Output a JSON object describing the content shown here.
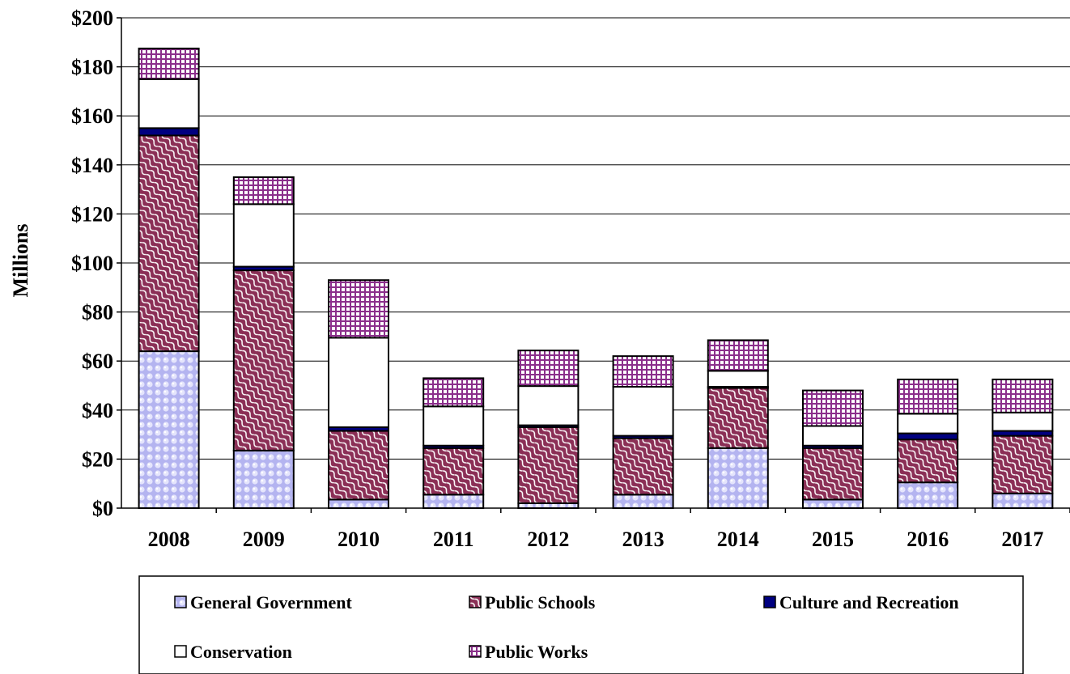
{
  "chart_data": {
    "type": "bar",
    "stacked": true,
    "ylabel": "Millions",
    "ylim": [
      0,
      200
    ],
    "y_ticks": [
      "$0",
      "$20",
      "$40",
      "$60",
      "$80",
      "$100",
      "$120",
      "$140",
      "$160",
      "$180",
      "$200"
    ],
    "y_tick_values": [
      0,
      20,
      40,
      60,
      80,
      100,
      120,
      140,
      160,
      180,
      200
    ],
    "grid": true,
    "legend_position": "bottom",
    "categories": [
      "2008",
      "2009",
      "2010",
      "2011",
      "2012",
      "2013",
      "2014",
      "2015",
      "2016",
      "2017"
    ],
    "series": [
      {
        "name": "General Government",
        "color": "#b4b4f0",
        "pattern": "dots",
        "values": [
          64,
          23.5,
          3.5,
          5.5,
          2,
          5.5,
          24.5,
          3.5,
          10.5,
          6
        ]
      },
      {
        "name": "Public Schools",
        "color": "#8b2f56",
        "pattern": "waves",
        "values": [
          88,
          73.5,
          28,
          19,
          31,
          23,
          24.5,
          21,
          17.5,
          23.5
        ]
      },
      {
        "name": "Culture and Recreation",
        "color": "#000080",
        "pattern": "solid",
        "values": [
          3,
          1.5,
          1.5,
          1,
          0.8,
          1,
          0.5,
          1,
          2.5,
          2
        ]
      },
      {
        "name": "Conservation",
        "color": "#ffffff",
        "pattern": "solid",
        "values": [
          20,
          25.5,
          36.5,
          16,
          16,
          20,
          6.5,
          8,
          8,
          7.5
        ]
      },
      {
        "name": "Public Works",
        "color": "#8b2f8b",
        "pattern": "grid",
        "values": [
          12.5,
          11,
          23.5,
          11.5,
          14.5,
          12.5,
          12.5,
          14.5,
          14,
          13.5
        ]
      }
    ]
  }
}
